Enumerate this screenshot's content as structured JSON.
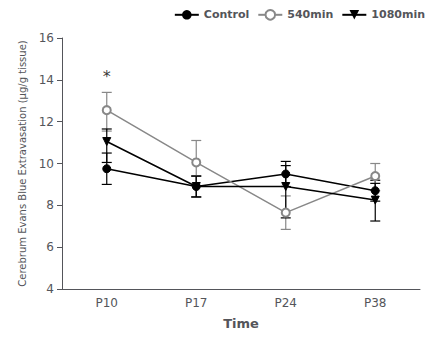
{
  "chart_data": {
    "type": "line",
    "categories": [
      "P10",
      "P17",
      "P24",
      "P38"
    ],
    "xlabel": "Time",
    "ylabel": "Cerebrum Evans Blue Extravasation (μg/g tissue)",
    "ylim": [
      4,
      16
    ],
    "yticks": [
      4,
      6,
      8,
      10,
      12,
      14,
      16
    ],
    "grid": false,
    "legend": "upper right",
    "series": [
      {
        "name": "Control",
        "color": "#000000",
        "marker": "circle",
        "line_style": "solid",
        "values": [
          9.75,
          8.9,
          9.5,
          8.7
        ],
        "yerr": [
          0.75,
          0.5,
          0.6,
          0.5
        ]
      },
      {
        "name": "540min",
        "color": "#888888",
        "marker": "open_circle",
        "line_style": "solid",
        "values": [
          12.55,
          10.05,
          7.65,
          9.4
        ],
        "yerr_lo": [
          1.0,
          1.1,
          0.8,
          0.7
        ],
        "yerr_hi": [
          0.85,
          1.05,
          0.8,
          0.6
        ]
      },
      {
        "name": "1080min",
        "color": "#000000",
        "marker": "triangle_down",
        "line_style": "solid",
        "values": [
          11.05,
          8.9,
          8.9,
          8.25
        ],
        "yerr_lo": [
          1.0,
          0.5,
          1.5,
          1.0
        ],
        "yerr_hi": [
          0.6,
          0.5,
          1.0,
          0.8
        ]
      }
    ],
    "annotations": [
      {
        "text": "*",
        "x": "P10",
        "y": 13.8
      }
    ]
  }
}
